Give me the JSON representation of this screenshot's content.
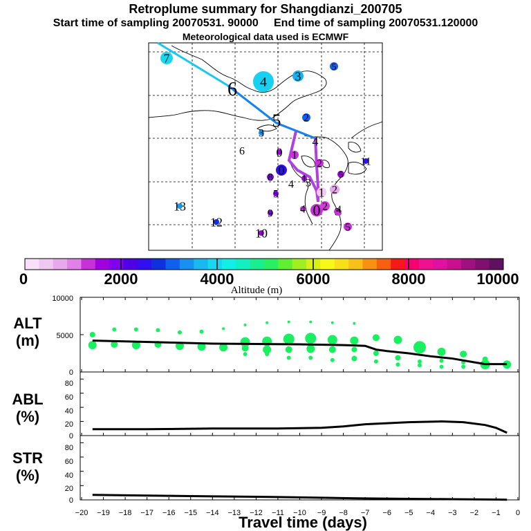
{
  "header": {
    "title": "Retroplume summary for Shangdianzi_200705",
    "sampling": "Start time of sampling 20070531. 90000     End time of sampling 20070531.120000",
    "met": "Meteorological data used is ECMWF"
  },
  "colors": {
    "scale": [
      "#f8e0f8",
      "#f0c8f0",
      "#e8a8ec",
      "#e080e8",
      "#c830d8",
      "#a000e0",
      "#8000f0",
      "#5000e8",
      "#3010f0",
      "#1030e0",
      "#1060f0",
      "#1890f0",
      "#18b8f0",
      "#18d8f0",
      "#10f0e8",
      "#10f0c0",
      "#18f090",
      "#28f060",
      "#60f030",
      "#a0f020",
      "#d8f018",
      "#f8f818",
      "#f8e018",
      "#f8c018",
      "#f89010",
      "#f86010",
      "#f81818",
      "#f80070",
      "#f01090",
      "#e010a0",
      "#c81090",
      "#a01080",
      "#801070",
      "#601060"
    ],
    "track_blue": "#1090f0",
    "track_purple": "#b040e0",
    "alt_dot": "#18f060",
    "line": "#000000"
  },
  "colorbar": {
    "ticks": [
      "0",
      "2000",
      "4000",
      "6000",
      "8000",
      "10000"
    ],
    "label": "Altitude (m)"
  },
  "map": {
    "plumes": [
      {
        "label": "7",
        "c": "#18d8f0",
        "size": 9
      },
      {
        "label": "4",
        "c": "#18d0f0",
        "size": 15
      },
      {
        "label": "3",
        "c": "#18b0f0",
        "size": 8
      },
      {
        "label": "5",
        "c": "#1060f0",
        "size": 6
      },
      {
        "label": "6",
        "c": "#1898f0",
        "size": 0
      },
      {
        "label": "5",
        "c": "#1070f0",
        "size": 0
      },
      {
        "label": "2",
        "c": "#1060f0",
        "size": 6
      },
      {
        "label": "3",
        "c": "#1890f0",
        "size": 4
      },
      {
        "label": "6",
        "c": "#18a8f0",
        "size": 0
      },
      {
        "label": "4",
        "c": "#8000f0",
        "size": 0
      },
      {
        "label": "0",
        "c": "#a000e0",
        "size": 4
      },
      {
        "label": "0",
        "c": "#3010f0",
        "size": 8
      },
      {
        "label": "1",
        "c": "#c830d8",
        "size": 6
      },
      {
        "label": "2",
        "c": "#c830d8",
        "size": 6
      },
      {
        "label": "8",
        "c": "#8000f0",
        "size": 5
      },
      {
        "label": "4",
        "c": "#8000f0",
        "size": 0
      },
      {
        "label": "1",
        "c": "#a000e0",
        "size": 4
      },
      {
        "label": "3",
        "c": "#a000e0",
        "size": 0
      },
      {
        "label": "1",
        "c": "#f0c8f0",
        "size": 7
      },
      {
        "label": "2",
        "c": "#e8a8ec",
        "size": 7
      },
      {
        "label": "5",
        "c": "#8000f0",
        "size": 4
      },
      {
        "label": "11",
        "c": "#3010f0",
        "size": 4
      },
      {
        "label": "5",
        "c": "#a000e0",
        "size": 5
      },
      {
        "label": "13",
        "c": "#1898f0",
        "size": 4
      },
      {
        "label": "12",
        "c": "#1030e0",
        "size": 4
      },
      {
        "label": "9",
        "c": "#8000f0",
        "size": 4
      },
      {
        "label": "10",
        "c": "#a000e0",
        "size": 4
      },
      {
        "label": "4",
        "c": "#c830d8",
        "size": 4
      },
      {
        "label": "0",
        "c": "#c830d8",
        "size": 9
      },
      {
        "label": "2",
        "c": "#d040d8",
        "size": 7
      },
      {
        "label": "3",
        "c": "#c830d8",
        "size": 5
      },
      {
        "label": "4",
        "c": "#c830d8",
        "size": 4
      },
      {
        "label": "5",
        "c": "#c830d8",
        "size": 6
      }
    ]
  },
  "panels": {
    "alt": {
      "label1": "ALT",
      "label2": "(m)",
      "ticks": [
        "10000",
        "5000",
        "0"
      ]
    },
    "abl": {
      "label1": "ABL",
      "label2": "(%)",
      "ticks": [
        "80",
        "60",
        "40",
        "20",
        "0"
      ]
    },
    "str": {
      "label1": "STR",
      "label2": "(%)",
      "ticks": [
        "80",
        "60",
        "40",
        "20",
        "0"
      ]
    },
    "xlabel": "Travel time (days)"
  },
  "chart_data": {
    "type": "line",
    "title": "Retroplume summary for Shangdianzi_200705",
    "xlabel": "Travel time (days)",
    "x_ticks": [
      "−20",
      "−19",
      "−18",
      "−17",
      "−16",
      "−15",
      "−14",
      "−13",
      "−12",
      "−11",
      "−10",
      "−9",
      "−8",
      "−7",
      "−6",
      "−5",
      "−4",
      "−3",
      "−2",
      "−1",
      "0"
    ],
    "xlim": [
      -20,
      0
    ],
    "alt": {
      "ylabel": "ALT (m)",
      "ylim": [
        0,
        10000
      ],
      "mean": [
        [
          -19.5,
          4200
        ],
        [
          -18,
          4100
        ],
        [
          -16,
          3950
        ],
        [
          -14,
          3800
        ],
        [
          -12,
          3750
        ],
        [
          -10,
          3700
        ],
        [
          -8,
          3600
        ],
        [
          -7,
          3500
        ],
        [
          -6.5,
          3000
        ],
        [
          -6,
          2800
        ],
        [
          -5,
          2500
        ],
        [
          -4,
          2100
        ],
        [
          -3,
          1800
        ],
        [
          -2,
          1300
        ],
        [
          -1.5,
          1050
        ],
        [
          -0.5,
          1050
        ]
      ],
      "clusters": [
        {
          "x": -19.5,
          "y": [
            5000,
            3600
          ],
          "s": [
            4,
            6
          ]
        },
        {
          "x": -18.5,
          "y": [
            5700,
            3700
          ],
          "s": [
            3,
            5
          ]
        },
        {
          "x": -17.5,
          "y": [
            5700,
            3600
          ],
          "s": [
            3,
            6
          ]
        },
        {
          "x": -16.5,
          "y": [
            5600,
            3700
          ],
          "s": [
            3,
            5
          ]
        },
        {
          "x": -15.5,
          "y": [
            5300,
            3500
          ],
          "s": [
            3,
            6
          ]
        },
        {
          "x": -14.5,
          "y": [
            5400,
            3400
          ],
          "s": [
            3,
            6
          ]
        },
        {
          "x": -13.5,
          "y": [
            5800,
            3300
          ],
          "s": [
            2,
            6
          ]
        },
        {
          "x": -12.5,
          "y": [
            6300,
            4000,
            3200,
            2400
          ],
          "s": [
            2,
            7,
            5,
            3
          ]
        },
        {
          "x": -11.5,
          "y": [
            6600,
            4100,
            3000,
            2400
          ],
          "s": [
            2,
            7,
            6,
            3
          ]
        },
        {
          "x": -10.5,
          "y": [
            6700,
            4400,
            3000,
            1900
          ],
          "s": [
            2,
            8,
            5,
            3
          ]
        },
        {
          "x": -9.5,
          "y": [
            6700,
            4500,
            3100,
            1900
          ],
          "s": [
            2,
            8,
            6,
            3
          ]
        },
        {
          "x": -8.5,
          "y": [
            6600,
            4300,
            3000,
            1600
          ],
          "s": [
            2,
            7,
            5,
            3
          ]
        },
        {
          "x": -7.5,
          "y": [
            6500,
            4200,
            3000,
            1800
          ],
          "s": [
            2,
            6,
            4,
            4
          ]
        },
        {
          "x": -6.5,
          "y": [
            4600,
            2500,
            1400
          ],
          "s": [
            5,
            4,
            3
          ]
        },
        {
          "x": -5.5,
          "y": [
            4300,
            1900,
            1000
          ],
          "s": [
            6,
            4,
            3
          ]
        },
        {
          "x": -4.5,
          "y": [
            3300,
            1400,
            900
          ],
          "s": [
            9,
            3,
            3
          ]
        },
        {
          "x": -3.5,
          "y": [
            2700,
            1500,
            700
          ],
          "s": [
            6,
            3,
            3
          ]
        },
        {
          "x": -2.5,
          "y": [
            2400,
            1300,
            700
          ],
          "s": [
            5,
            3,
            3
          ]
        },
        {
          "x": -1.5,
          "y": [
            1700,
            1000
          ],
          "s": [
            4,
            7
          ]
        },
        {
          "x": -0.5,
          "y": [
            1000
          ],
          "s": [
            6
          ]
        }
      ]
    },
    "abl": {
      "ylabel": "ABL (%)",
      "ylim": [
        0,
        90
      ],
      "values": [
        [
          -19.5,
          9
        ],
        [
          -17,
          9
        ],
        [
          -14,
          10
        ],
        [
          -11,
          10
        ],
        [
          -9,
          11
        ],
        [
          -8,
          13
        ],
        [
          -7,
          16
        ],
        [
          -5,
          19
        ],
        [
          -3.5,
          20
        ],
        [
          -2.5,
          19
        ],
        [
          -1.5,
          15
        ],
        [
          -1,
          11
        ],
        [
          -0.5,
          4
        ]
      ]
    },
    "str": {
      "ylabel": "STR (%)",
      "ylim": [
        0,
        90
      ],
      "values": [
        [
          -19.5,
          7
        ],
        [
          -17,
          6
        ],
        [
          -14,
          5
        ],
        [
          -11,
          4
        ],
        [
          -9,
          3
        ],
        [
          -7,
          2
        ],
        [
          -5,
          1.5
        ],
        [
          -3,
          1
        ],
        [
          -1,
          0.5
        ],
        [
          -0.5,
          0.3
        ]
      ]
    }
  }
}
